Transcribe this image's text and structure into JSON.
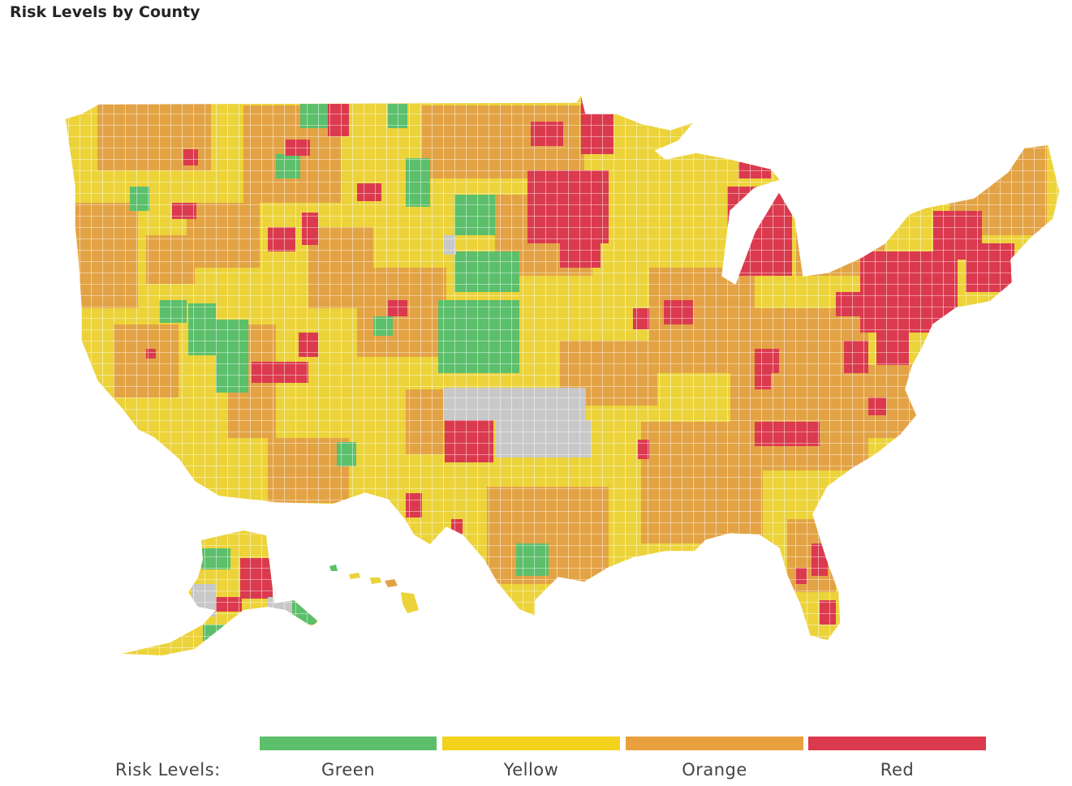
{
  "title": "Risk Levels by County",
  "legend": {
    "title": "Risk Levels:",
    "items": [
      {
        "label": "Green",
        "color": "#5cbf6b"
      },
      {
        "label": "Yellow",
        "color": "#f2d21a"
      },
      {
        "label": "Orange",
        "color": "#e8a13e"
      },
      {
        "label": "Red",
        "color": "#db3a4e"
      }
    ]
  },
  "colors": {
    "green": "#5cbf6b",
    "yellow": "#ecd33a",
    "orange": "#e3a345",
    "red": "#db3a4e",
    "no_data": "#c8c8c8",
    "border": "#ffffff"
  }
}
